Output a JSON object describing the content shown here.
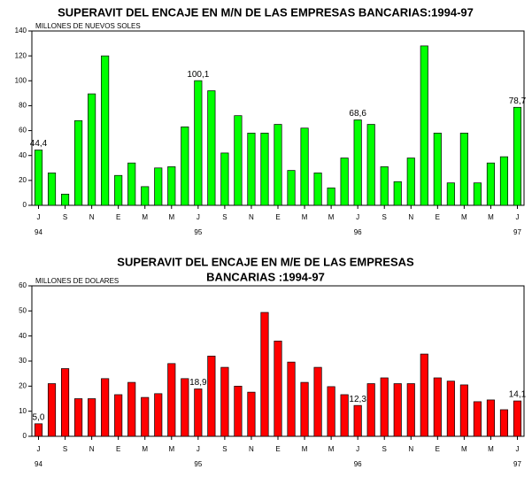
{
  "chart_data": [
    {
      "type": "bar",
      "title": [
        "SUPERAVIT DEL ENCAJE EN M/N DE LAS EMPRESAS BANCARIAS:1994-97"
      ],
      "y_label": "MILLONES DE NUEVOS SOLES",
      "color": "#00ff00",
      "categories": [
        "J",
        null,
        "S",
        null,
        "N",
        null,
        "E",
        null,
        "M",
        null,
        "M",
        null,
        "J",
        null,
        "S",
        null,
        "N",
        null,
        "E",
        null,
        "M",
        null,
        "M",
        null,
        "J",
        null,
        "S",
        null,
        "N",
        null,
        "E",
        null,
        "M",
        null,
        "M",
        null,
        "J"
      ],
      "years": [
        "94",
        null,
        null,
        null,
        null,
        null,
        null,
        null,
        null,
        null,
        null,
        null,
        "95",
        null,
        null,
        null,
        null,
        null,
        null,
        null,
        null,
        null,
        null,
        null,
        "96",
        null,
        null,
        null,
        null,
        null,
        null,
        null,
        null,
        null,
        null,
        null,
        "97"
      ],
      "values": [
        44.4,
        26,
        9,
        68,
        89.5,
        120,
        24,
        34,
        15,
        30,
        31,
        63,
        100.1,
        92,
        42,
        72,
        58,
        58,
        65,
        28,
        62,
        26,
        14,
        38,
        68.6,
        65,
        31,
        19,
        38,
        128,
        58,
        18,
        58,
        18,
        34,
        39,
        78.7
      ],
      "value_labels": [
        "44,4",
        null,
        null,
        null,
        null,
        null,
        null,
        null,
        null,
        null,
        null,
        null,
        "100,1",
        null,
        null,
        null,
        null,
        null,
        null,
        null,
        null,
        null,
        null,
        null,
        "68,6",
        null,
        null,
        null,
        null,
        null,
        null,
        null,
        null,
        null,
        null,
        null,
        "78,7"
      ],
      "ylim": [
        0,
        140
      ],
      "yticks": [
        0,
        20,
        40,
        60,
        80,
        100,
        120,
        140
      ]
    },
    {
      "type": "bar",
      "title": [
        "SUPERAVIT DEL ENCAJE EN M/E DE LAS EMPRESAS",
        "BANCARIAS :1994-97"
      ],
      "y_label": "MILLONES DE DOLARES",
      "color": "#ff0000",
      "categories": [
        "J",
        null,
        "S",
        null,
        "N",
        null,
        "E",
        null,
        "M",
        null,
        "M",
        null,
        "J",
        null,
        "S",
        null,
        "N",
        null,
        "E",
        null,
        "M",
        null,
        "M",
        null,
        "J",
        null,
        "S",
        null,
        "N",
        null,
        "E",
        null,
        "M",
        null,
        "M",
        null,
        "J"
      ],
      "years": [
        "94",
        null,
        null,
        null,
        null,
        null,
        null,
        null,
        null,
        null,
        null,
        null,
        "95",
        null,
        null,
        null,
        null,
        null,
        null,
        null,
        null,
        null,
        null,
        null,
        "96",
        null,
        null,
        null,
        null,
        null,
        null,
        null,
        null,
        null,
        null,
        null,
        "97"
      ],
      "values": [
        5.0,
        21,
        27,
        15,
        15,
        23,
        16.6,
        21.5,
        15.5,
        17,
        29,
        23,
        18.9,
        32,
        27.5,
        20,
        17.6,
        49.4,
        38,
        29.6,
        21.5,
        27.5,
        19.8,
        16.6,
        12.3,
        21,
        23.3,
        21,
        21,
        32.8,
        23.3,
        22,
        20.5,
        13.8,
        14.5,
        10.6,
        14.1
      ],
      "value_labels": [
        "5,0",
        null,
        null,
        null,
        null,
        null,
        null,
        null,
        null,
        null,
        null,
        null,
        "18,9",
        null,
        null,
        null,
        null,
        null,
        null,
        null,
        null,
        null,
        null,
        null,
        "12,3",
        null,
        null,
        null,
        null,
        null,
        null,
        null,
        null,
        null,
        null,
        null,
        "14,1"
      ],
      "ylim": [
        0,
        60
      ],
      "yticks": [
        0,
        10,
        20,
        30,
        40,
        50,
        60
      ]
    }
  ]
}
